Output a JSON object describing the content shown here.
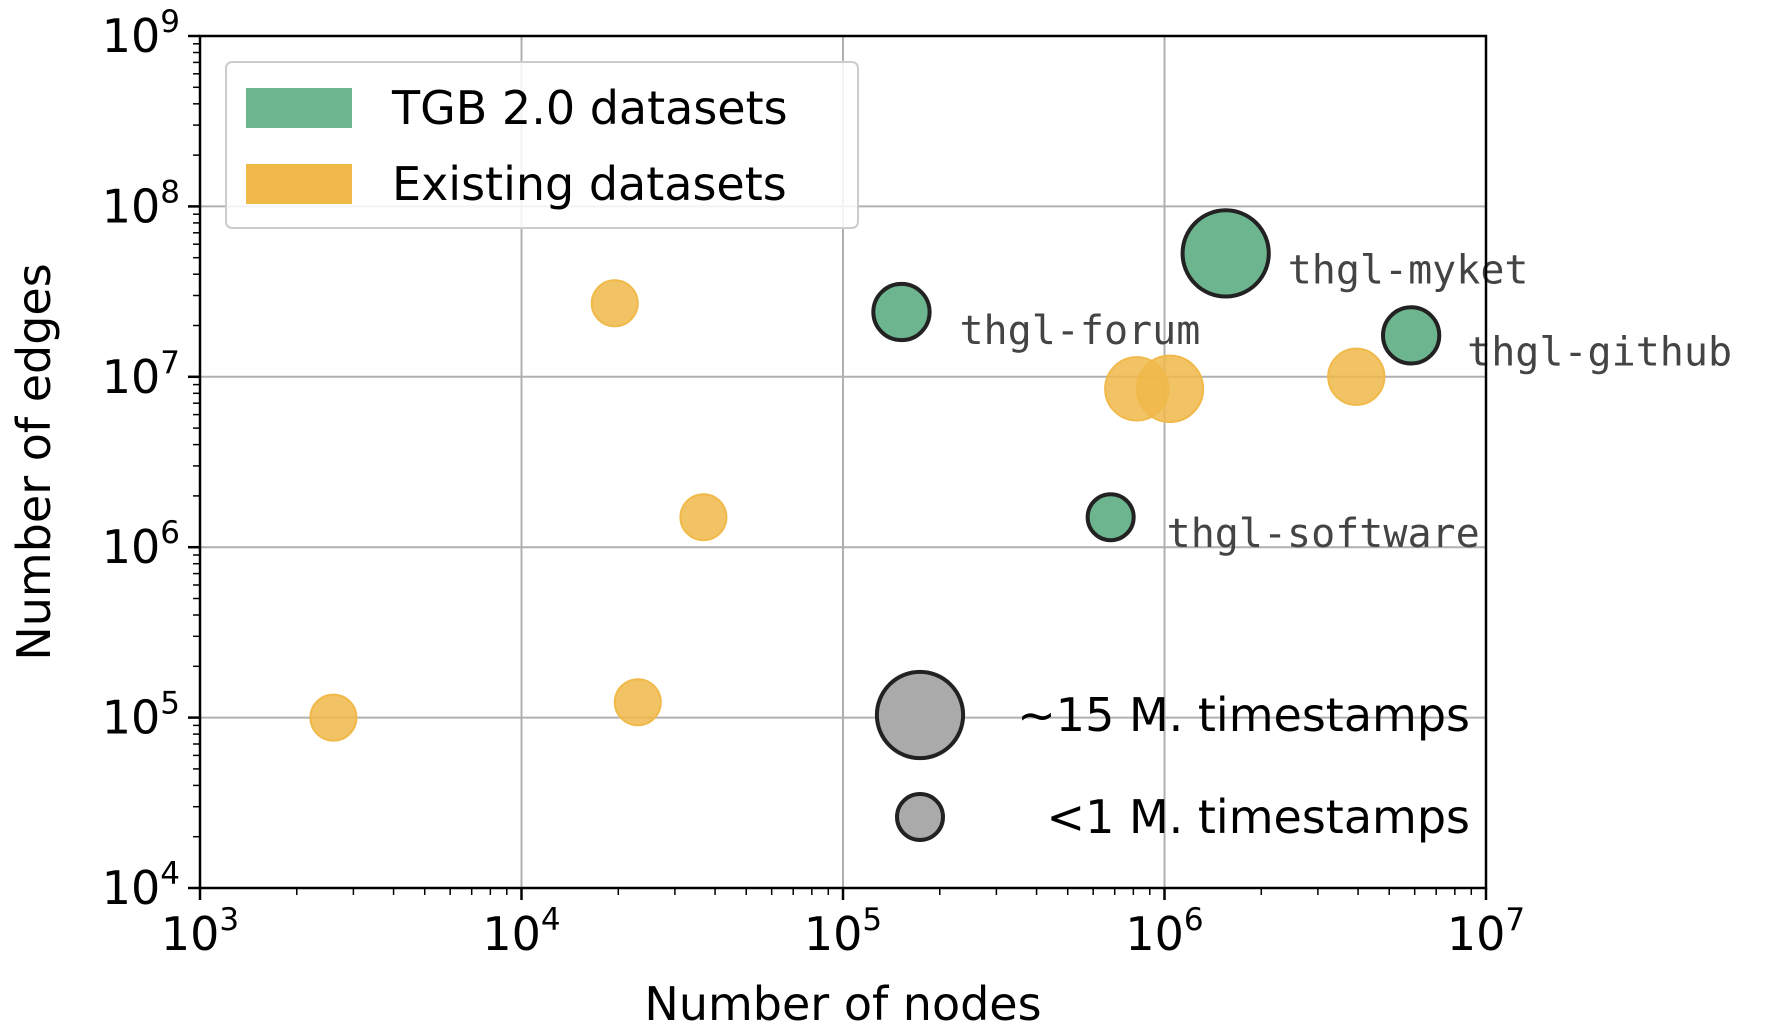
{
  "chart_data": {
    "type": "scatter",
    "title": "",
    "xlabel": "Number of nodes",
    "ylabel": "Number of edges",
    "xscale": "log",
    "yscale": "log",
    "xlim": [
      1000,
      10000000
    ],
    "ylim": [
      10000,
      1000000000
    ],
    "x_ticks": [
      {
        "value": 1000,
        "base": "10",
        "exp": "3"
      },
      {
        "value": 10000,
        "base": "10",
        "exp": "4"
      },
      {
        "value": 100000,
        "base": "10",
        "exp": "5"
      },
      {
        "value": 1000000,
        "base": "10",
        "exp": "6"
      },
      {
        "value": 10000000,
        "base": "10",
        "exp": "7"
      }
    ],
    "y_ticks": [
      {
        "value": 10000,
        "base": "10",
        "exp": "4"
      },
      {
        "value": 100000,
        "base": "10",
        "exp": "5"
      },
      {
        "value": 1000000,
        "base": "10",
        "exp": "6"
      },
      {
        "value": 10000000,
        "base": "10",
        "exp": "7"
      },
      {
        "value": 100000000,
        "base": "10",
        "exp": "8"
      },
      {
        "value": 1000000000,
        "base": "10",
        "exp": "9"
      }
    ],
    "grid": true,
    "legend_position": "top-left",
    "series": [
      {
        "name": "TGB 2.0 datasets",
        "color": "#6db58f",
        "edgecolor": "#222222",
        "points": [
          {
            "x": 152000,
            "y": 24000000,
            "timestamps_m": 3,
            "label": "thgl-forum"
          },
          {
            "x": 1550000,
            "y": 53000000,
            "timestamps_m": 15,
            "label": "thgl-myket"
          },
          {
            "x": 5850000,
            "y": 17500000,
            "timestamps_m": 3,
            "label": "thgl-github"
          },
          {
            "x": 680000,
            "y": 1500000,
            "timestamps_m": 1,
            "label": "thgl-software"
          }
        ]
      },
      {
        "name": "Existing datasets",
        "color": "#f0b94a",
        "edgecolor": "#f0b94a",
        "points": [
          {
            "x": 19500,
            "y": 27000000,
            "timestamps_m": 1
          },
          {
            "x": 36800,
            "y": 1500000,
            "timestamps_m": 1
          },
          {
            "x": 2600,
            "y": 100000,
            "timestamps_m": 1
          },
          {
            "x": 23000,
            "y": 123000,
            "timestamps_m": 1
          },
          {
            "x": 820000,
            "y": 8500000,
            "timestamps_m": 5
          },
          {
            "x": 1040000,
            "y": 8500000,
            "timestamps_m": 6
          },
          {
            "x": 3950000,
            "y": 10000000,
            "timestamps_m": 3
          }
        ]
      }
    ],
    "size_legend": [
      {
        "label": "~15 M. timestamps",
        "timestamps_m": 15
      },
      {
        "label": "<1 M. timestamps",
        "timestamps_m": 1
      }
    ],
    "size_legend_color": "#aaaaaa"
  }
}
